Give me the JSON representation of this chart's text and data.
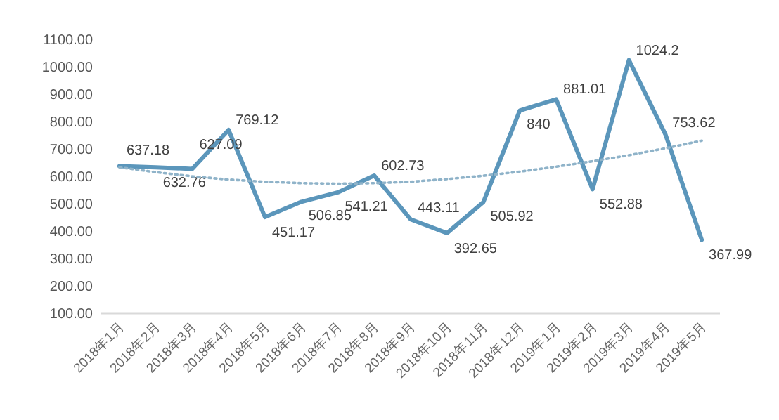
{
  "chart_data": {
    "type": "line",
    "categories": [
      "2018年1月",
      "2018年2月",
      "2018年3月",
      "2018年4月",
      "2018年5月",
      "2018年6月",
      "2018年7月",
      "2018年8月",
      "2018年9月",
      "2018年10月",
      "2018年11月",
      "2018年12月",
      "2019年1月",
      "2019年2月",
      "2019年3月",
      "2019年4月",
      "2019年5月"
    ],
    "series": [
      {
        "color": "#5b96bb",
        "line_style": "solid",
        "values": [
          637.18,
          632.76,
          627.09,
          769.12,
          451.17,
          506.85,
          541.21,
          602.73,
          443.11,
          392.65,
          505.92,
          840,
          881.01,
          552.88,
          1024.2,
          753.62,
          367.99
        ],
        "value_labels": [
          "637.18",
          "632.76",
          "627.09",
          "769.12",
          "451.17",
          "506.85",
          "541.21",
          "602.73",
          "443.11",
          "392.65",
          "505.92",
          "840",
          "881.01",
          "552.88",
          "1024.2",
          "753.62",
          "367.99"
        ]
      },
      {
        "color": "#8fb3c9",
        "line_style": "dotted",
        "values": [
          633,
          615,
          600,
          588,
          580,
          575,
          573,
          575,
          580,
          590,
          602,
          617,
          635,
          655,
          677,
          702,
          730
        ]
      }
    ],
    "ylim": [
      100,
      1100
    ],
    "yticks": [
      {
        "value": 100,
        "label": "100.00"
      },
      {
        "value": 200,
        "label": "200.00"
      },
      {
        "value": 300,
        "label": "300.00"
      },
      {
        "value": 400,
        "label": "400.00"
      },
      {
        "value": 500,
        "label": "500.00"
      },
      {
        "value": 600,
        "label": "600.00"
      },
      {
        "value": 700,
        "label": "700.00"
      },
      {
        "value": 800,
        "label": "800.00"
      },
      {
        "value": 900,
        "label": "900.00"
      },
      {
        "value": 1000,
        "label": "1000.00"
      },
      {
        "value": 1100,
        "label": "1100.00"
      }
    ],
    "marker": "none"
  }
}
